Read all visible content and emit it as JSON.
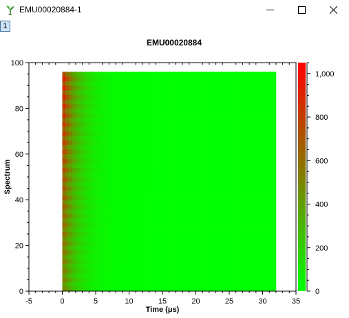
{
  "window": {
    "title": "EMU00020884-1",
    "app_icon": "plant-sprout-icon",
    "controls": {
      "minimize": "minimize-icon",
      "maximize": "maximize-icon",
      "close": "close-icon"
    }
  },
  "page_tab": {
    "label": "1"
  },
  "chart_data": {
    "type": "heatmap",
    "title": "EMU00020884",
    "xlabel": "Time (μs)",
    "ylabel": "Spectrum",
    "xlim": [
      -5,
      35
    ],
    "ylim": [
      0,
      100
    ],
    "xticks": [
      -5,
      0,
      5,
      10,
      15,
      20,
      25,
      30,
      35
    ],
    "xtick_labels": [
      "-5",
      "0",
      "5",
      "10",
      "15",
      "20",
      "25",
      "30",
      "35"
    ],
    "yticks": [
      0,
      20,
      40,
      60,
      80,
      100
    ],
    "ytick_labels": [
      "0",
      "20",
      "40",
      "60",
      "80",
      "100"
    ],
    "data_extent": {
      "x": [
        0,
        32
      ],
      "y": [
        0,
        96
      ]
    },
    "colorbar": {
      "min": 0,
      "max": 1050,
      "ticks": [
        0,
        200,
        400,
        600,
        800,
        1000
      ],
      "tick_labels": [
        "0",
        "200",
        "400",
        "600",
        "800",
        "1,000"
      ],
      "colors": {
        "low": "#00ff00",
        "high": "#ff0000"
      }
    },
    "grid": false
  }
}
